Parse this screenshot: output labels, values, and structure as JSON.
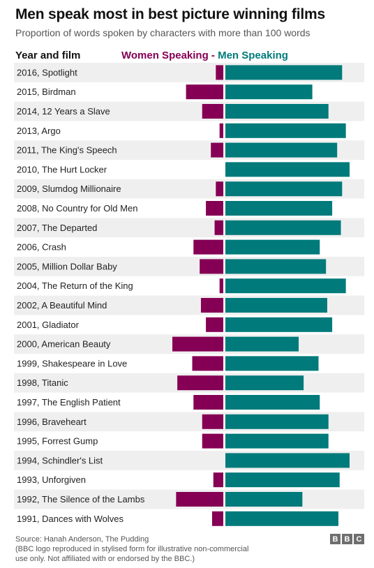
{
  "chart_data": {
    "type": "bar",
    "title": "Men speak most in best picture winning films",
    "subtitle": "Proportion of words spoken by characters with more than 100 words",
    "column_header": "Year and film",
    "legend": {
      "women": "Women Speaking",
      "separator": " - ",
      "men": "Men Speaking"
    },
    "categories": [
      "2016, Spotlight",
      "2015, Birdman",
      "2014, 12 Years a Slave",
      "2013, Argo",
      "2011, The King's Speech",
      "2010, The Hurt Locker",
      "2009, Slumdog Millionaire",
      "2008, No Country for Old Men",
      "2007, The Departed",
      "2006, Crash",
      "2005, Million Dollar Baby",
      "2004, The Return of the King",
      "2002, A Beautiful Mind",
      "2001, Gladiator",
      "2000, American Beauty",
      "1999, Shakespeare in Love",
      "1998, Titanic",
      "1997, The English Patient",
      "1996, Braveheart",
      "1995, Forrest Gump",
      "1994, Schindler's List",
      "1993, Unforgiven",
      "1992, The Silence of the Lambs",
      "1991, Dances with Wolves"
    ],
    "series": [
      {
        "name": "Women Speaking",
        "color": "#850054",
        "values": [
          6,
          30,
          17,
          3,
          10,
          0,
          6,
          14,
          7,
          24,
          19,
          3,
          18,
          14,
          41,
          25,
          37,
          24,
          17,
          17,
          0,
          8,
          38,
          9
        ]
      },
      {
        "name": "Men Speaking",
        "color": "#007a7a",
        "values": [
          94,
          70,
          83,
          97,
          90,
          100,
          94,
          86,
          93,
          76,
          81,
          97,
          82,
          86,
          59,
          75,
          63,
          76,
          83,
          83,
          100,
          92,
          62,
          91
        ]
      }
    ],
    "xlim": [
      0,
      100
    ],
    "grid": false
  },
  "footer": {
    "source": "Source: Hanah Anderson, The Pudding",
    "disclaimer_1": "(BBC logo reproduced in stylised form for illustrative non-commercial",
    "disclaimer_2": "use only. Not affiliated with or endorsed by the BBC.)"
  },
  "logo": {
    "letters": [
      "B",
      "B",
      "C"
    ]
  }
}
